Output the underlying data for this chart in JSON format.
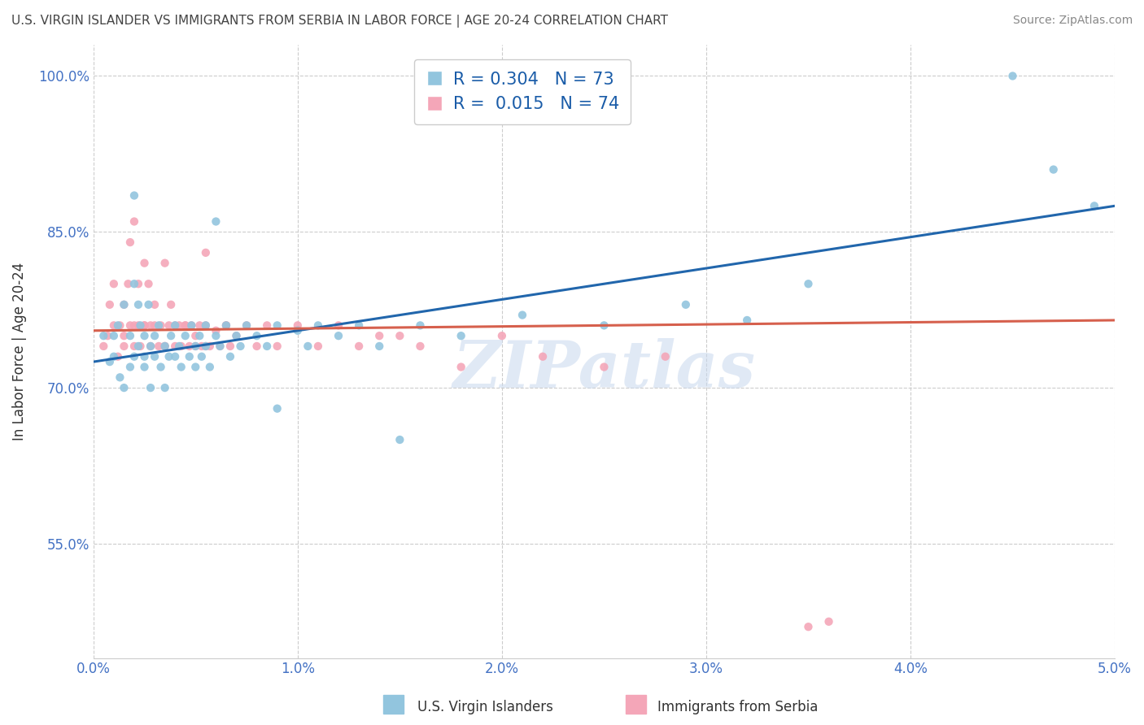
{
  "title": "U.S. VIRGIN ISLANDER VS IMMIGRANTS FROM SERBIA IN LABOR FORCE | AGE 20-24 CORRELATION CHART",
  "source": "Source: ZipAtlas.com",
  "ylabel": "In Labor Force | Age 20-24",
  "xlim": [
    0.0,
    5.0
  ],
  "ylim": [
    44.0,
    103.0
  ],
  "xticks": [
    0.0,
    1.0,
    2.0,
    3.0,
    4.0,
    5.0
  ],
  "xtick_labels": [
    "0.0%",
    "1.0%",
    "2.0%",
    "3.0%",
    "4.0%",
    "5.0%"
  ],
  "yticks": [
    55.0,
    70.0,
    85.0,
    100.0
  ],
  "ytick_labels": [
    "55.0%",
    "70.0%",
    "85.0%",
    "100.0%"
  ],
  "blue_R": 0.304,
  "blue_N": 73,
  "pink_R": 0.015,
  "pink_N": 74,
  "blue_color": "#92c5de",
  "pink_color": "#f4a6b8",
  "blue_line_color": "#2166ac",
  "pink_line_color": "#d6604d",
  "legend_label_blue": "U.S. Virgin Islanders",
  "legend_label_pink": "Immigrants from Serbia",
  "watermark_text": "ZIPatlas",
  "grid_color": "#cccccc",
  "background_color": "#ffffff",
  "tick_color": "#4472c4",
  "blue_x": [
    0.05,
    0.08,
    0.1,
    0.1,
    0.12,
    0.13,
    0.15,
    0.15,
    0.18,
    0.18,
    0.2,
    0.2,
    0.22,
    0.22,
    0.23,
    0.25,
    0.25,
    0.25,
    0.27,
    0.28,
    0.28,
    0.3,
    0.3,
    0.32,
    0.33,
    0.35,
    0.35,
    0.37,
    0.38,
    0.4,
    0.4,
    0.42,
    0.43,
    0.45,
    0.47,
    0.48,
    0.5,
    0.5,
    0.52,
    0.53,
    0.55,
    0.55,
    0.57,
    0.6,
    0.62,
    0.65,
    0.67,
    0.7,
    0.72,
    0.75,
    0.8,
    0.85,
    0.9,
    1.0,
    1.05,
    1.1,
    1.2,
    1.3,
    1.4,
    1.6,
    1.8,
    2.1,
    2.5,
    2.9,
    3.5,
    4.5,
    4.7,
    4.9,
    0.2,
    0.6,
    0.9,
    1.5,
    3.2
  ],
  "blue_y": [
    75.0,
    72.5,
    75.0,
    73.0,
    76.0,
    71.0,
    78.0,
    70.0,
    75.0,
    72.0,
    80.0,
    73.0,
    78.0,
    74.0,
    76.0,
    73.0,
    75.0,
    72.0,
    78.0,
    74.0,
    70.0,
    75.0,
    73.0,
    76.0,
    72.0,
    74.0,
    70.0,
    73.0,
    75.0,
    76.0,
    73.0,
    74.0,
    72.0,
    75.0,
    73.0,
    76.0,
    74.0,
    72.0,
    75.0,
    73.0,
    76.0,
    74.0,
    72.0,
    75.0,
    74.0,
    76.0,
    73.0,
    75.0,
    74.0,
    76.0,
    75.0,
    74.0,
    76.0,
    75.5,
    74.0,
    76.0,
    75.0,
    76.0,
    74.0,
    76.0,
    75.0,
    77.0,
    76.0,
    78.0,
    80.0,
    100.0,
    91.0,
    87.5,
    88.5,
    86.0,
    68.0,
    65.0,
    76.5
  ],
  "pink_x": [
    0.05,
    0.07,
    0.08,
    0.1,
    0.1,
    0.12,
    0.13,
    0.15,
    0.15,
    0.17,
    0.18,
    0.18,
    0.2,
    0.2,
    0.2,
    0.22,
    0.22,
    0.23,
    0.25,
    0.25,
    0.27,
    0.28,
    0.28,
    0.3,
    0.3,
    0.32,
    0.33,
    0.35,
    0.37,
    0.38,
    0.4,
    0.4,
    0.42,
    0.43,
    0.45,
    0.47,
    0.48,
    0.5,
    0.5,
    0.52,
    0.53,
    0.55,
    0.57,
    0.6,
    0.62,
    0.65,
    0.67,
    0.7,
    0.75,
    0.8,
    0.85,
    0.9,
    1.0,
    1.1,
    1.2,
    1.3,
    1.4,
    1.5,
    1.6,
    1.8,
    2.0,
    2.2,
    2.5,
    0.35,
    0.55,
    2.8,
    3.5,
    3.6,
    0.15,
    0.25,
    0.35,
    0.45,
    0.55,
    0.65
  ],
  "pink_y": [
    74.0,
    75.0,
    78.0,
    76.0,
    80.0,
    73.0,
    76.0,
    78.0,
    75.0,
    80.0,
    84.0,
    76.0,
    86.0,
    76.0,
    74.0,
    80.0,
    76.0,
    74.0,
    82.0,
    76.0,
    80.0,
    76.0,
    74.0,
    78.0,
    76.0,
    74.0,
    76.0,
    74.0,
    76.0,
    78.0,
    76.0,
    74.0,
    76.0,
    74.0,
    76.0,
    74.0,
    76.0,
    75.0,
    74.0,
    76.0,
    74.0,
    76.0,
    74.0,
    75.5,
    74.0,
    76.0,
    74.0,
    75.0,
    76.0,
    74.0,
    76.0,
    74.0,
    76.0,
    74.0,
    76.0,
    74.0,
    75.0,
    75.0,
    74.0,
    72.0,
    75.0,
    73.0,
    72.0,
    82.0,
    83.0,
    73.0,
    47.0,
    47.5,
    74.0,
    76.0,
    74.0,
    76.0,
    74.0,
    76.0
  ],
  "blue_trend_x0": 0.0,
  "blue_trend_y0": 72.5,
  "blue_trend_x1": 5.0,
  "blue_trend_y1": 87.5,
  "pink_trend_x0": 0.0,
  "pink_trend_y0": 75.5,
  "pink_trend_x1": 5.0,
  "pink_trend_y1": 76.5
}
